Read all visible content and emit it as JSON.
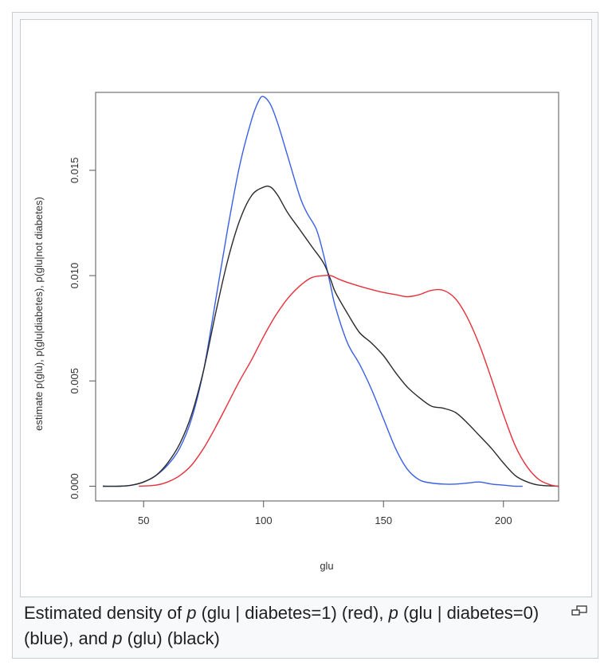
{
  "figure": {
    "caption_parts": [
      {
        "text": "Estimated density of ",
        "italic": false
      },
      {
        "text": "p",
        "italic": true
      },
      {
        "text": " (glu | diabetes=1) (red), ",
        "italic": false
      },
      {
        "text": "p",
        "italic": true
      },
      {
        "text": " (glu | diabetes=0) (blue), and ",
        "italic": false
      },
      {
        "text": "p",
        "italic": true
      },
      {
        "text": " (glu) (black)",
        "italic": false
      }
    ],
    "magnify_icon": "magnify-clip-icon"
  },
  "chart_data": {
    "type": "line",
    "title": "",
    "xlabel": "glu",
    "ylabel": "estimate p(glu), p(glu|diabetes), p(glu|not diabetes)",
    "xlim": [
      30,
      223
    ],
    "ylim": [
      -0.0007,
      0.0187
    ],
    "xticks": [
      50,
      100,
      150,
      200
    ],
    "yticks": [
      0.0,
      0.005,
      0.01,
      0.015
    ],
    "ytick_labels": [
      "0.000",
      "0.005",
      "0.010",
      "0.015"
    ],
    "grid": false,
    "legend": "none",
    "series": [
      {
        "color": "#3a5fe6",
        "x": [
          33,
          40,
          45,
          50,
          55,
          60,
          65,
          70,
          75,
          80,
          85,
          90,
          95,
          98,
          100,
          103,
          106,
          110,
          115,
          118,
          122,
          125,
          128,
          130,
          135,
          140,
          145,
          150,
          155,
          160,
          165,
          170,
          175,
          180,
          185,
          190,
          195,
          200,
          205,
          208
        ],
        "y": [
          0.0,
          0.0,
          5e-05,
          0.0002,
          0.0005,
          0.001,
          0.0018,
          0.0032,
          0.0055,
          0.0088,
          0.0122,
          0.0152,
          0.0174,
          0.0183,
          0.0185,
          0.0181,
          0.0172,
          0.0157,
          0.0138,
          0.013,
          0.0122,
          0.011,
          0.0095,
          0.0085,
          0.0068,
          0.0058,
          0.0046,
          0.0032,
          0.0018,
          0.0008,
          0.0003,
          0.00015,
          0.0001,
          0.0001,
          0.00015,
          0.0002,
          0.0001,
          5e-05,
          0.0,
          0.0
        ]
      },
      {
        "color": "#2a2a2a",
        "x": [
          33,
          40,
          45,
          50,
          55,
          60,
          65,
          70,
          75,
          80,
          85,
          90,
          95,
          100,
          103,
          106,
          110,
          115,
          120,
          125,
          128,
          130,
          135,
          140,
          145,
          150,
          155,
          160,
          165,
          170,
          175,
          180,
          185,
          190,
          195,
          200,
          205,
          210,
          215,
          223
        ],
        "y": [
          0.0,
          0.0,
          5e-05,
          0.0002,
          0.0005,
          0.0011,
          0.002,
          0.0034,
          0.0055,
          0.0082,
          0.0107,
          0.0126,
          0.0138,
          0.0142,
          0.0142,
          0.0138,
          0.013,
          0.0122,
          0.0114,
          0.0106,
          0.0098,
          0.0092,
          0.0082,
          0.0073,
          0.0068,
          0.0062,
          0.0054,
          0.0047,
          0.0042,
          0.0038,
          0.0037,
          0.0035,
          0.003,
          0.0024,
          0.0018,
          0.0011,
          0.0005,
          0.0002,
          5e-05,
          0.0
        ]
      },
      {
        "color": "#e8303a",
        "x": [
          48,
          55,
          60,
          65,
          70,
          75,
          80,
          85,
          90,
          95,
          100,
          105,
          110,
          115,
          120,
          125,
          128,
          132,
          137,
          143,
          150,
          155,
          160,
          165,
          170,
          175,
          180,
          185,
          190,
          195,
          200,
          205,
          210,
          215,
          220,
          223
        ],
        "y": [
          0.0,
          5e-05,
          0.0002,
          0.0005,
          0.001,
          0.0018,
          0.0028,
          0.0039,
          0.005,
          0.006,
          0.0071,
          0.0081,
          0.0089,
          0.0095,
          0.0099,
          0.01,
          0.01,
          0.0098,
          0.0096,
          0.0094,
          0.0092,
          0.0091,
          0.009,
          0.0091,
          0.0093,
          0.0093,
          0.0089,
          0.008,
          0.0067,
          0.0051,
          0.0034,
          0.0019,
          0.0009,
          0.0003,
          5e-05,
          0.0
        ]
      }
    ]
  }
}
